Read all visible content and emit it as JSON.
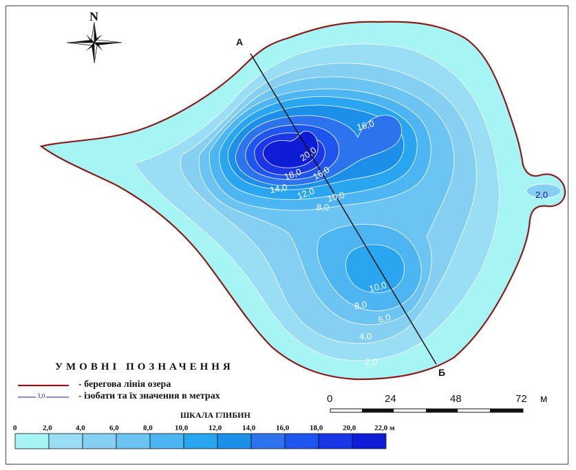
{
  "map": {
    "north_label": "N",
    "profile_start": "А",
    "profile_end": "Б",
    "isobath_labels": [
      "16,0",
      "20,0",
      "18,0",
      "16,0",
      "14,0",
      "12,0",
      "10,0",
      "8,0",
      "10,0",
      "8,0",
      "6,0",
      "4,0",
      "2,0",
      "2,0"
    ]
  },
  "legend": {
    "title": "УМОВНІ ПОЗНАЧЕННЯ",
    "shoreline_text": "- берегова лінія озера",
    "isobath_sample": "3,0",
    "isobath_text": "- ізобати та їх значення в метрах",
    "shoreline_color": "#8b1a1a",
    "isobath_color": "#1a1aa0"
  },
  "scale_bar": {
    "labels": [
      "0",
      "24",
      "48",
      "72"
    ],
    "unit": "м"
  },
  "depth_scale": {
    "title": "ШКАЛА ГЛИБИН",
    "labels": [
      "0",
      "2,0",
      "4,0",
      "6,0",
      "8,0",
      "10,0",
      "12,0",
      "14,0",
      "16,0",
      "18,0",
      "20,0",
      "22,0 м"
    ],
    "colors": [
      "#a6f4f4",
      "#99def4",
      "#85d0f2",
      "#6cc4f2",
      "#4db5f2",
      "#2aa6f0",
      "#1c8fe8",
      "#2e73ee",
      "#1e55ee",
      "#1a36e6",
      "#0f1cd6",
      "#0a10b8"
    ]
  }
}
